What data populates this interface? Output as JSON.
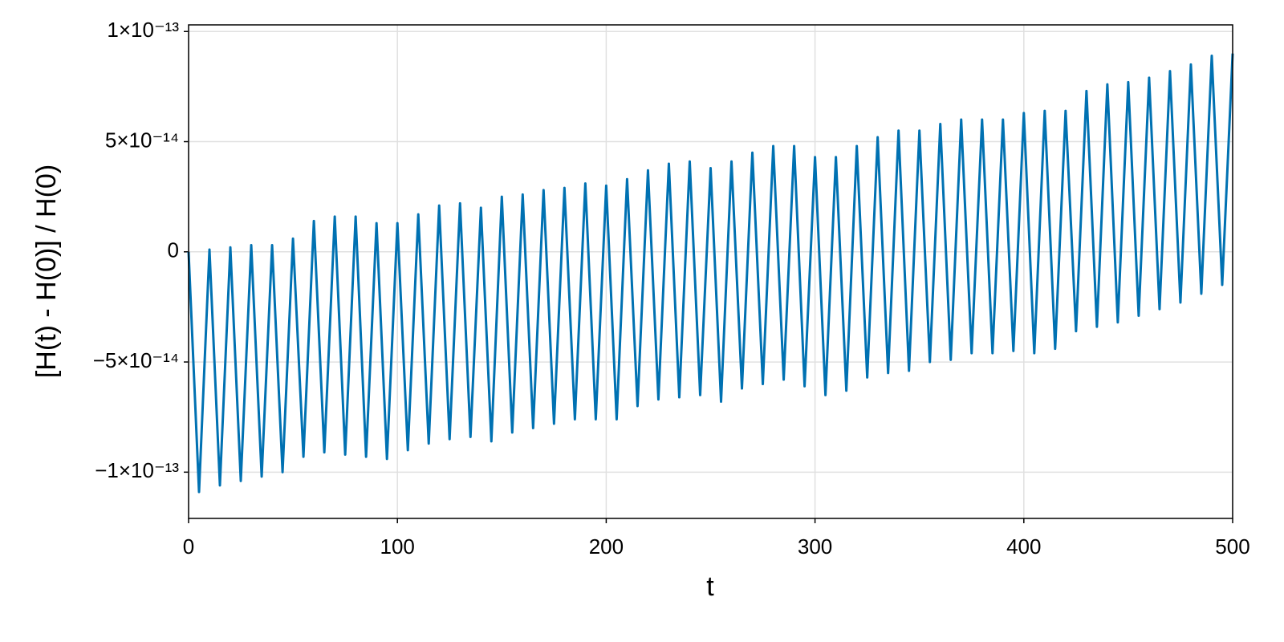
{
  "chart_data": {
    "type": "line",
    "xlabel": "t",
    "ylabel": "[H(t) - H(0)] / H(0)",
    "xlim": [
      0,
      500
    ],
    "ylim": [
      -1.21e-13,
      1.03e-13
    ],
    "xticks": [
      0,
      100,
      200,
      300,
      400,
      500
    ],
    "yticks": [
      {
        "value": -1e-13,
        "label": "−1×10⁻¹³"
      },
      {
        "value": -5e-14,
        "label": "−5×10⁻¹⁴"
      },
      0,
      {
        "value": 5e-14,
        "label": "5×10⁻¹⁴"
      },
      {
        "value": 1e-13,
        "label": "1×10⁻¹³"
      }
    ],
    "grid": true,
    "x": [
      0,
      5,
      10,
      15,
      20,
      25,
      30,
      35,
      40,
      45,
      50,
      55,
      60,
      65,
      70,
      75,
      80,
      85,
      90,
      95,
      100,
      105,
      110,
      115,
      120,
      125,
      130,
      135,
      140,
      145,
      150,
      155,
      160,
      165,
      170,
      175,
      180,
      185,
      190,
      195,
      200,
      205,
      210,
      215,
      220,
      225,
      230,
      235,
      240,
      245,
      250,
      255,
      260,
      265,
      270,
      275,
      280,
      285,
      290,
      295,
      300,
      305,
      310,
      315,
      320,
      325,
      330,
      335,
      340,
      345,
      350,
      355,
      360,
      365,
      370,
      375,
      380,
      385,
      390,
      395,
      400,
      405,
      410,
      415,
      420,
      425,
      430,
      435,
      440,
      445,
      450,
      455,
      460,
      465,
      470,
      475,
      480,
      485,
      490,
      495,
      500
    ],
    "series": [
      {
        "color": "#0071b2",
        "values": [
          0,
          -1.09e-13,
          1e-15,
          -1.06e-13,
          2e-15,
          -1.04e-13,
          3e-15,
          -1.02e-13,
          3e-15,
          -1e-13,
          6e-15,
          -9.3e-14,
          1.4e-14,
          -9.1e-14,
          1.6e-14,
          -9.2e-14,
          1.6e-14,
          -9.3e-14,
          1.3e-14,
          -9.4e-14,
          1.3e-14,
          -9e-14,
          1.7e-14,
          -8.7e-14,
          2.1e-14,
          -8.5e-14,
          2.2e-14,
          -8.4e-14,
          2e-14,
          -8.6e-14,
          2.5e-14,
          -8.2e-14,
          2.6e-14,
          -8e-14,
          2.8e-14,
          -7.8e-14,
          2.9e-14,
          -7.6e-14,
          3.1e-14,
          -7.6e-14,
          3e-14,
          -7.6e-14,
          3.3e-14,
          -7e-14,
          3.7e-14,
          -6.7e-14,
          4e-14,
          -6.6e-14,
          4.1e-14,
          -6.5e-14,
          3.8e-14,
          -6.8e-14,
          4.1e-14,
          -6.2e-14,
          4.5e-14,
          -6e-14,
          4.8e-14,
          -5.8e-14,
          4.8e-14,
          -6.1e-14,
          4.3e-14,
          -6.5e-14,
          4.3e-14,
          -6.3e-14,
          4.8e-14,
          -5.7e-14,
          5.2e-14,
          -5.5e-14,
          5.5e-14,
          -5.4e-14,
          5.5e-14,
          -5e-14,
          5.8e-14,
          -4.9e-14,
          6e-14,
          -4.6e-14,
          6e-14,
          -4.6e-14,
          6e-14,
          -4.5e-14,
          6.3e-14,
          -4.6e-14,
          6.4e-14,
          -4.4e-14,
          6.4e-14,
          -3.6e-14,
          7.3e-14,
          -3.4e-14,
          7.6e-14,
          -3.2e-14,
          7.7e-14,
          -2.9e-14,
          7.9e-14,
          -2.6e-14,
          8.2e-14,
          -2.3e-14,
          8.5e-14,
          -1.9e-14,
          8.9e-14,
          -1.5e-14,
          9e-14
        ]
      }
    ]
  }
}
